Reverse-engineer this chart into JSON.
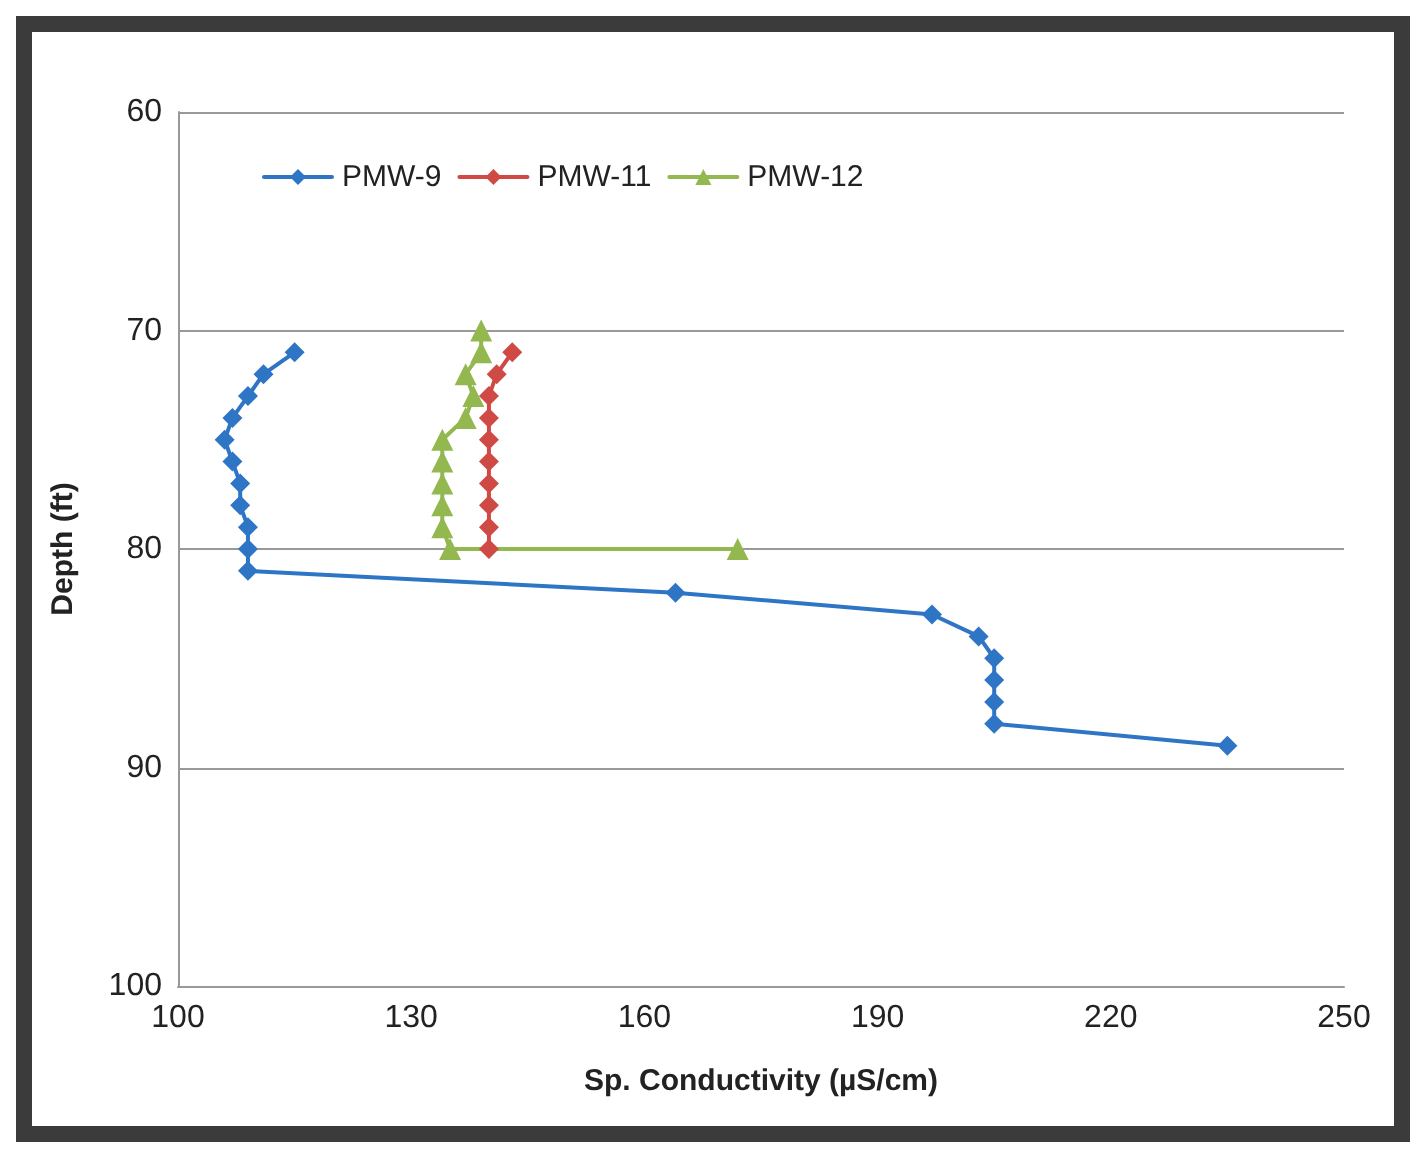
{
  "chart_data": {
    "type": "line",
    "xlabel": "Sp. Conductivity (µS/cm)",
    "ylabel": "Depth (ft)",
    "xlim": [
      100,
      250
    ],
    "xticks": [
      100,
      130,
      160,
      190,
      220,
      250
    ],
    "ylim": [
      100,
      60
    ],
    "yticks": [
      60,
      70,
      80,
      90,
      100
    ],
    "grid": "y",
    "legend": "top left",
    "series": [
      {
        "name": "PMW-9",
        "color": "#2e75c6",
        "marker": "diamond",
        "x": [
          115,
          111,
          109,
          107,
          106,
          107,
          108,
          108,
          109,
          109,
          109,
          164,
          197,
          203,
          205,
          205,
          205,
          205,
          235
        ],
        "values": [
          71,
          72,
          73,
          74,
          75,
          76,
          77,
          78,
          79,
          80,
          81,
          82,
          83,
          84,
          85,
          86,
          87,
          88,
          89
        ]
      },
      {
        "name": "PMW-11",
        "color": "#d04a45",
        "marker": "diamond",
        "x": [
          143,
          141,
          140,
          140,
          140,
          140,
          140,
          140,
          140,
          140
        ],
        "values": [
          71,
          72,
          73,
          74,
          75,
          76,
          77,
          78,
          79,
          80
        ]
      },
      {
        "name": "PMW-12",
        "color": "#92b84f",
        "marker": "triangle",
        "x": [
          139,
          139,
          137,
          138,
          137,
          134,
          134,
          134,
          134,
          134,
          135,
          172
        ],
        "values": [
          70,
          71,
          72,
          73,
          74,
          75,
          76,
          77,
          78,
          79,
          80,
          80
        ]
      }
    ]
  }
}
